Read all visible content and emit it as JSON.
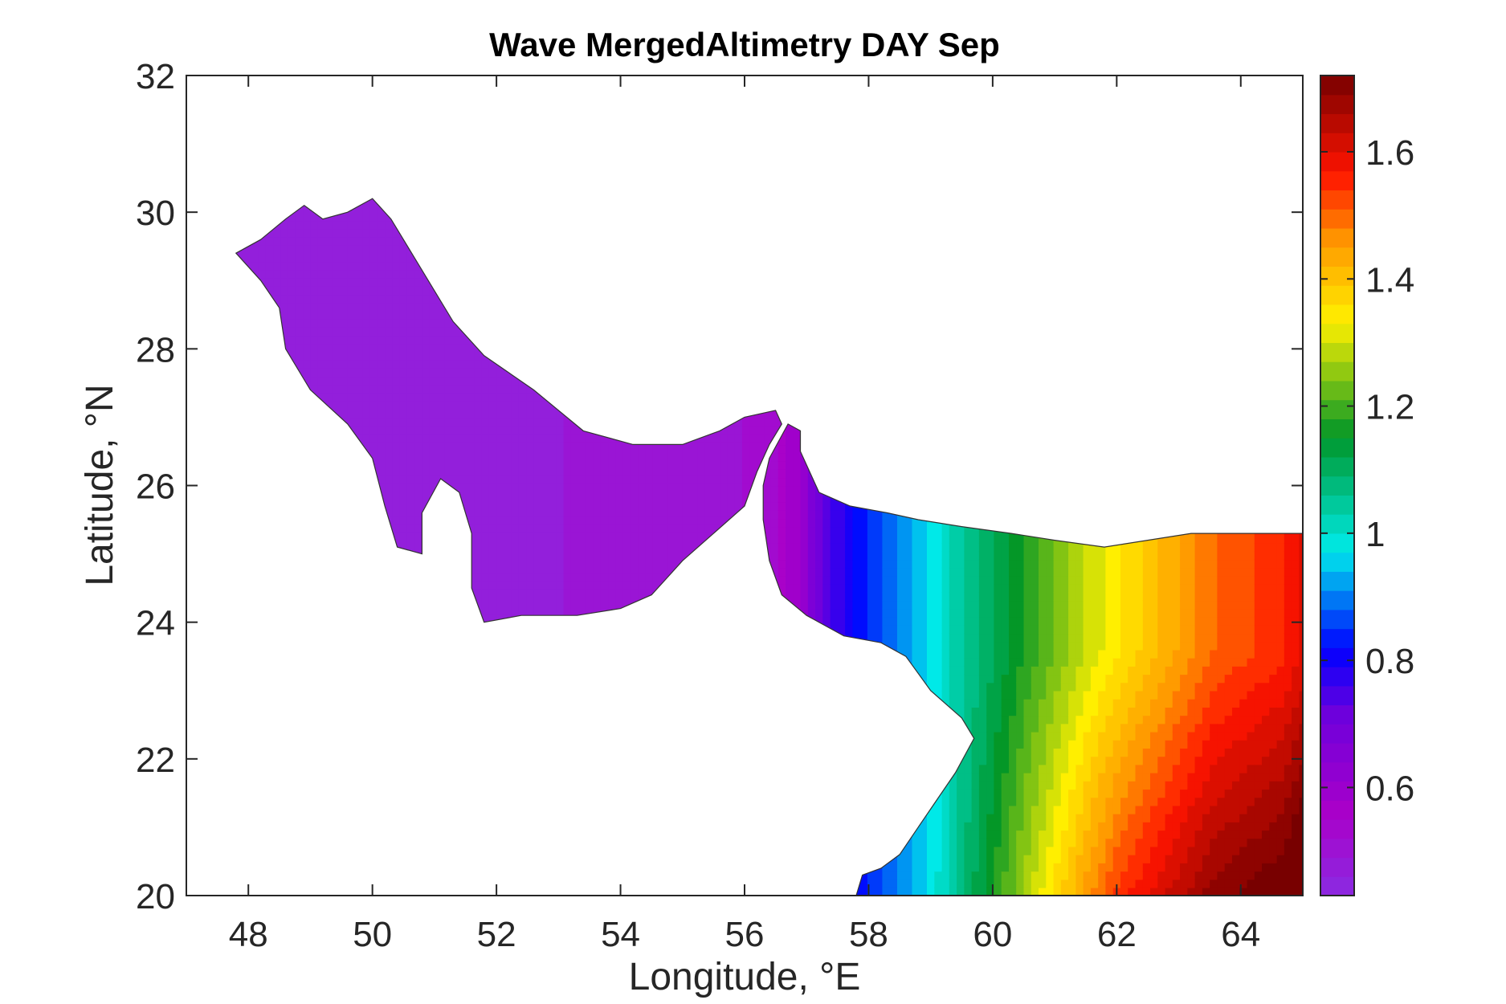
{
  "chart_data": {
    "type": "heatmap",
    "title": "Wave MergedAltimetry DAY Sep",
    "xlabel": "Longitude, °E",
    "ylabel": "Latitude, °N",
    "xlim": [
      47,
      65
    ],
    "ylim": [
      20,
      32
    ],
    "x_ticks": [
      48,
      50,
      52,
      54,
      56,
      58,
      60,
      62,
      64
    ],
    "y_ticks": [
      20,
      22,
      24,
      26,
      28,
      30,
      32
    ],
    "colorbar": {
      "range": [
        0.43,
        1.72
      ],
      "ticks": [
        0.6,
        0.8,
        1,
        1.2,
        1.4,
        1.6
      ],
      "colormap": "jet-like rainbow (violet to dark red)"
    },
    "contour_interval": 0.03,
    "grid": false,
    "regions": [
      {
        "name": "Persian Gulf",
        "value_range": [
          0.47,
          0.52
        ],
        "outline": [
          [
            48.2,
            29.6
          ],
          [
            48.6,
            29.9
          ],
          [
            48.9,
            30.1
          ],
          [
            49.2,
            29.9
          ],
          [
            49.6,
            30.0
          ],
          [
            50.0,
            30.2
          ],
          [
            50.3,
            29.9
          ],
          [
            50.7,
            29.3
          ],
          [
            51.3,
            28.4
          ],
          [
            51.8,
            27.9
          ],
          [
            52.6,
            27.4
          ],
          [
            53.4,
            26.8
          ],
          [
            54.2,
            26.6
          ],
          [
            55.0,
            26.6
          ],
          [
            55.6,
            26.8
          ],
          [
            56.0,
            27.0
          ],
          [
            56.5,
            27.1
          ],
          [
            56.6,
            26.9
          ],
          [
            56.4,
            26.6
          ],
          [
            56.2,
            26.2
          ],
          [
            56.0,
            25.7
          ],
          [
            55.5,
            25.3
          ],
          [
            55.0,
            24.9
          ],
          [
            54.5,
            24.4
          ],
          [
            54.0,
            24.2
          ],
          [
            53.3,
            24.1
          ],
          [
            52.4,
            24.1
          ],
          [
            51.8,
            24.0
          ],
          [
            51.6,
            24.5
          ],
          [
            51.6,
            25.3
          ],
          [
            51.4,
            25.9
          ],
          [
            51.1,
            26.1
          ],
          [
            50.8,
            25.6
          ],
          [
            50.8,
            25.0
          ],
          [
            50.4,
            25.1
          ],
          [
            50.2,
            25.7
          ],
          [
            50.0,
            26.4
          ],
          [
            49.6,
            26.9
          ],
          [
            49.0,
            27.4
          ],
          [
            48.6,
            28.0
          ],
          [
            48.5,
            28.6
          ],
          [
            48.2,
            29.0
          ],
          [
            47.8,
            29.4
          ]
        ],
        "value_stops": [
          [
            51.5,
            0.47
          ],
          [
            53.0,
            0.48
          ],
          [
            54.5,
            0.49
          ],
          [
            55.5,
            0.5
          ],
          [
            56.3,
            0.52
          ]
        ]
      },
      {
        "name": "Gulf of Oman / Arabian Sea",
        "value_range": [
          0.52,
          1.72
        ],
        "outline": [
          [
            56.4,
            26.4
          ],
          [
            56.7,
            26.9
          ],
          [
            56.9,
            26.8
          ],
          [
            56.9,
            26.5
          ],
          [
            57.2,
            25.9
          ],
          [
            57.7,
            25.7
          ],
          [
            58.3,
            25.6
          ],
          [
            58.8,
            25.5
          ],
          [
            59.5,
            25.4
          ],
          [
            60.3,
            25.3
          ],
          [
            61.0,
            25.2
          ],
          [
            61.8,
            25.1
          ],
          [
            62.5,
            25.2
          ],
          [
            63.2,
            25.3
          ],
          [
            64.0,
            25.3
          ],
          [
            65.0,
            25.3
          ],
          [
            65.0,
            20.0
          ],
          [
            57.8,
            20.0
          ],
          [
            57.9,
            20.3
          ],
          [
            58.2,
            20.4
          ],
          [
            58.5,
            20.6
          ],
          [
            58.8,
            21.0
          ],
          [
            59.1,
            21.4
          ],
          [
            59.4,
            21.8
          ],
          [
            59.7,
            22.3
          ],
          [
            59.5,
            22.6
          ],
          [
            59.0,
            23.0
          ],
          [
            58.6,
            23.5
          ],
          [
            58.2,
            23.7
          ],
          [
            57.6,
            23.8
          ],
          [
            57.0,
            24.1
          ],
          [
            56.6,
            24.4
          ],
          [
            56.4,
            24.9
          ],
          [
            56.3,
            25.5
          ],
          [
            56.3,
            26.0
          ]
        ],
        "value_stops": [
          [
            56.4,
            0.52
          ],
          [
            56.8,
            0.6
          ],
          [
            57.3,
            0.75
          ],
          [
            57.8,
            0.82
          ],
          [
            58.6,
            0.92
          ],
          [
            59.5,
            1.05
          ],
          [
            60.5,
            1.18
          ],
          [
            61.5,
            1.3
          ],
          [
            62.5,
            1.4
          ],
          [
            63.5,
            1.5
          ],
          [
            64.6,
            1.55
          ],
          [
            65.0,
            1.6
          ]
        ],
        "south_gradient": "values increase southward to about 1.72 near 20°N"
      }
    ]
  }
}
